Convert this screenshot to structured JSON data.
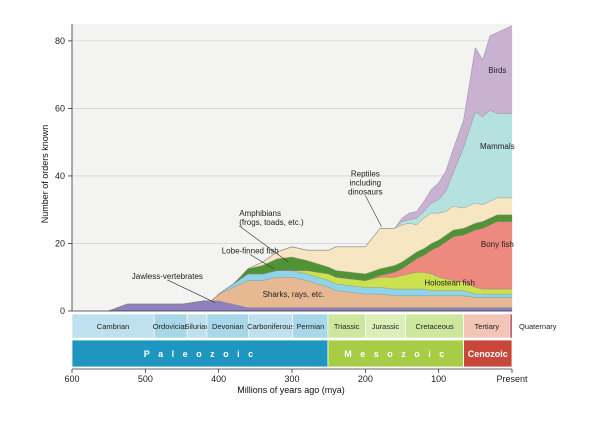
{
  "chart_data": {
    "type": "area",
    "stacked": true,
    "title": "",
    "xlabel": "Millions of years ago (mya)",
    "ylabel": "Number of orders known",
    "xlim": [
      600,
      0
    ],
    "ylim": [
      0,
      85
    ],
    "x_ticks": [
      {
        "value": 600,
        "label": "600"
      },
      {
        "value": 500,
        "label": "500"
      },
      {
        "value": 400,
        "label": "400"
      },
      {
        "value": 300,
        "label": "300"
      },
      {
        "value": 200,
        "label": "200"
      },
      {
        "value": 100,
        "label": "100"
      },
      {
        "value": 0,
        "label": "Present"
      }
    ],
    "y_ticks": [
      0,
      20,
      40,
      60,
      80
    ],
    "x": [
      550,
      525,
      450,
      420,
      410,
      400,
      380,
      360,
      340,
      320,
      300,
      280,
      250,
      240,
      200,
      180,
      160,
      150,
      140,
      130,
      120,
      110,
      100,
      90,
      80,
      66,
      50,
      40,
      30,
      20,
      10,
      0
    ],
    "series": [
      {
        "name": "Jawless-vertebrates",
        "color": "#8e7fbf",
        "values": [
          0,
          2,
          2,
          3,
          3,
          3,
          2,
          1,
          1,
          1,
          1,
          1,
          1,
          1,
          1,
          1,
          1,
          1,
          1,
          1,
          1,
          1,
          1,
          1,
          1,
          1,
          1,
          1,
          1,
          1,
          1,
          1
        ]
      },
      {
        "name": "Sharks, rays, etc.",
        "color": "#e7b992",
        "values": [
          0,
          0,
          0,
          0,
          0,
          2,
          5,
          8,
          8,
          9,
          9,
          8,
          6,
          5,
          4,
          4,
          3.5,
          3.5,
          3.5,
          3.5,
          3.5,
          3.5,
          3.5,
          3.5,
          3.5,
          3.5,
          3,
          3,
          3,
          3,
          3,
          3
        ]
      },
      {
        "name": "Lobe-finned fish",
        "color": "#8fd3e8",
        "values": [
          0,
          0,
          0,
          0,
          0,
          0,
          1,
          2,
          2,
          2,
          2,
          2,
          2,
          2,
          2,
          2,
          2,
          2,
          2,
          2,
          2,
          1.5,
          1.5,
          1.5,
          1.5,
          1.5,
          1,
          1,
          1,
          1,
          1,
          1
        ]
      },
      {
        "name": "Holostean fish",
        "color": "#cbe14f",
        "values": [
          0,
          0,
          0,
          0,
          0,
          0,
          0,
          0,
          0,
          0,
          0,
          1,
          2,
          2,
          2,
          3,
          3.5,
          4,
          4.5,
          5,
          5,
          5,
          4,
          3.5,
          3,
          2.5,
          2,
          1.5,
          1.5,
          1.5,
          1.5,
          1.5
        ]
      },
      {
        "name": "Bony fish",
        "color": "#ee8980",
        "values": [
          0,
          0,
          0,
          0,
          0,
          0,
          0,
          0,
          0,
          0,
          0,
          0,
          0,
          0,
          0,
          0.5,
          1.5,
          2,
          3,
          4,
          5,
          7,
          9,
          11,
          13,
          14,
          17,
          18,
          19,
          20,
          20,
          20
        ]
      },
      {
        "name": "Amphibians",
        "color": "#4f9336",
        "values": [
          0,
          0,
          0,
          0,
          0,
          0,
          0,
          1.5,
          2.5,
          3.5,
          4,
          3,
          2,
          2,
          2,
          2,
          2,
          2,
          2,
          2,
          2,
          2,
          2,
          2,
          2,
          2,
          2,
          2,
          2,
          2,
          2,
          2
        ]
      },
      {
        "name": "Reptiles including dinosaurs",
        "color": "#f7e6c2",
        "values": [
          0,
          0,
          0,
          0,
          0,
          0,
          0,
          0,
          1,
          2,
          3,
          3,
          5,
          7,
          8,
          12,
          11,
          11,
          10,
          8,
          9,
          9,
          8,
          7,
          7,
          6,
          6,
          5,
          5,
          5,
          5,
          5
        ]
      },
      {
        "name": "Mammals",
        "color": "#b5e1df",
        "values": [
          0,
          0,
          0,
          0,
          0,
          0,
          0,
          0,
          0,
          0,
          0,
          0,
          0,
          0,
          0,
          0,
          0,
          1,
          1,
          2,
          2,
          3,
          4,
          6,
          10,
          18,
          27,
          26,
          27,
          25,
          25,
          25
        ]
      },
      {
        "name": "Birds",
        "color": "#c8b1d1",
        "values": [
          0,
          0,
          0,
          0,
          0,
          0,
          0,
          0,
          0,
          0,
          0,
          0,
          0,
          0,
          0,
          0,
          0,
          1,
          2,
          2,
          3,
          4,
          5,
          6,
          7,
          8,
          19,
          17,
          22,
          24,
          25,
          26
        ]
      }
    ],
    "annotations": [
      {
        "id": "jawless",
        "lines": [
          "Jawless-vertebrates"
        ],
        "x": 470,
        "y": 9.5,
        "anchor": "middle",
        "leader_to": [
          405,
          2.5
        ]
      },
      {
        "id": "sharks",
        "lines": [
          "Sharks, rays, etc."
        ],
        "x": 298,
        "y": 4.2,
        "anchor": "middle"
      },
      {
        "id": "lobe",
        "lines": [
          "Lobe-finned fish"
        ],
        "x": 357,
        "y": 17,
        "anchor": "middle",
        "leader_to": [
          325,
          12.5
        ]
      },
      {
        "id": "amphibians",
        "lines": [
          "Amphibians",
          "(frogs, toads, etc.)"
        ],
        "x": 372,
        "y": 25.5,
        "anchor": "start",
        "leader_to": [
          305,
          14.5
        ]
      },
      {
        "id": "reptiles",
        "lines": [
          "Reptiles",
          "including",
          "dinosaurs"
        ],
        "x": 200,
        "y": 34.5,
        "anchor": "middle",
        "leader_to": [
          178,
          25
        ]
      },
      {
        "id": "holostean",
        "lines": [
          "Holostean fish"
        ],
        "x": 85,
        "y": 7.5,
        "anchor": "middle"
      },
      {
        "id": "bony",
        "lines": [
          "Bony fish"
        ],
        "x": 20,
        "y": 19,
        "anchor": "middle"
      },
      {
        "id": "mammals",
        "lines": [
          "Mammals"
        ],
        "x": 20,
        "y": 48,
        "anchor": "middle"
      },
      {
        "id": "birds",
        "lines": [
          "Birds"
        ],
        "x": 20,
        "y": 70.5,
        "anchor": "middle"
      }
    ],
    "periods": [
      {
        "name": "Cambrian",
        "start": 600,
        "end": 488,
        "color": "#bfe0ee"
      },
      {
        "name": "Ordovician",
        "start": 488,
        "end": 443,
        "color": "#a9d7ea"
      },
      {
        "name": "Silurian",
        "start": 443,
        "end": 416,
        "color": "#bfe0ee"
      },
      {
        "name": "Devonian",
        "start": 416,
        "end": 359,
        "color": "#a9d7ea"
      },
      {
        "name": "Carboniferous",
        "start": 359,
        "end": 299,
        "color": "#bfe0ee"
      },
      {
        "name": "Permian",
        "start": 299,
        "end": 251,
        "color": "#a9d7ea"
      },
      {
        "name": "Triassic",
        "start": 251,
        "end": 200,
        "color": "#cde89e"
      },
      {
        "name": "Jurassic",
        "start": 200,
        "end": 145,
        "color": "#dcefb8"
      },
      {
        "name": "Cretaceous",
        "start": 145,
        "end": 66,
        "color": "#cde89e"
      },
      {
        "name": "Tertiary",
        "start": 66,
        "end": 2.6,
        "color": "#f2c5b7"
      },
      {
        "name": "Quaternary",
        "start": 2.6,
        "end": 0,
        "color": "#b11e36"
      }
    ],
    "eras": [
      {
        "name": "Paleozoic",
        "start": 600,
        "end": 251,
        "color": "#1e96c0",
        "spaced": true
      },
      {
        "name": "Mesozoic",
        "start": 251,
        "end": 66,
        "color": "#a7cc45",
        "spaced": true
      },
      {
        "name": "Cenozoic",
        "start": 66,
        "end": 0,
        "color": "#c8463a",
        "spaced": false
      }
    ]
  }
}
